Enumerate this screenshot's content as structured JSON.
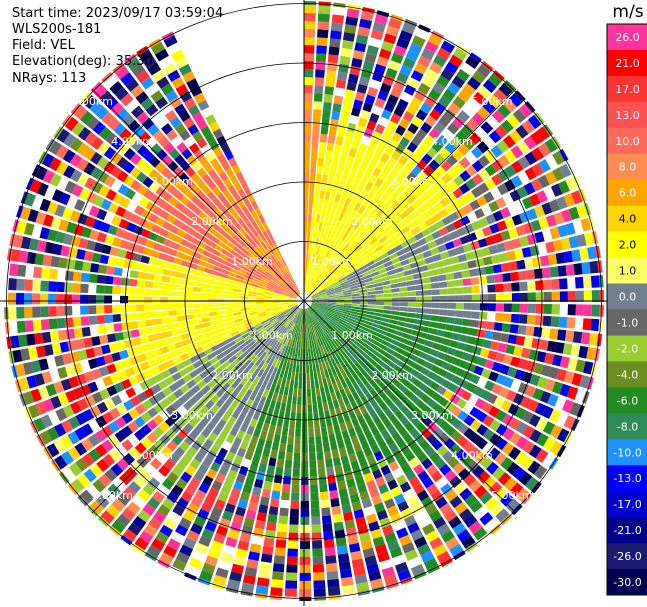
{
  "header": {
    "start_time": "Start time: 2023/09/17 03:59:04",
    "instrument": "WLS200s-181",
    "field": "Field: VEL",
    "elevation": "Elevation(deg): 35.30",
    "nrays": "NRays: 113"
  },
  "colorbar": {
    "unit": "m/s",
    "bins": [
      {
        "label": "26.0",
        "color": "#ff3399"
      },
      {
        "label": "21.0",
        "color": "#ff0000"
      },
      {
        "label": "17.0",
        "color": "#ff3333"
      },
      {
        "label": "13.0",
        "color": "#ff5050"
      },
      {
        "label": "10.0",
        "color": "#ff6a5a"
      },
      {
        "label": "8.0",
        "color": "#ff8c50"
      },
      {
        "label": "6.0",
        "color": "#ffa500"
      },
      {
        "label": "4.0",
        "color": "#ffd400"
      },
      {
        "label": "2.0",
        "color": "#ffff00"
      },
      {
        "label": "1.0",
        "color": "#ffff66"
      },
      {
        "label": "0.0",
        "color": "#708090"
      },
      {
        "label": "-1.0",
        "color": "#666666"
      },
      {
        "label": "-2.0",
        "color": "#9acd32"
      },
      {
        "label": "-4.0",
        "color": "#6b8e23"
      },
      {
        "label": "-6.0",
        "color": "#228b22"
      },
      {
        "label": "-8.0",
        "color": "#2e8b57"
      },
      {
        "label": "-10.0",
        "color": "#1e90ff"
      },
      {
        "label": "-13.0",
        "color": "#0000ff"
      },
      {
        "label": "-17.0",
        "color": "#0000cd"
      },
      {
        "label": "-21.0",
        "color": "#00008b"
      },
      {
        "label": "-26.0",
        "color": "#191970"
      },
      {
        "label": "-30.0",
        "color": "#000050"
      }
    ]
  },
  "range_ring_labels": [
    "1.00km",
    "2.00km",
    "3.00km",
    "4.00km",
    "5.00km"
  ],
  "chart_data": {
    "type": "heatmap",
    "ring_ranges_km": [
      1.0,
      2.0,
      3.0,
      4.0,
      5.0
    ],
    "missing_sector_deg": [
      -25,
      0
    ],
    "dominant_velocity_by_sector": [
      {
        "sector": "north-east near field",
        "velocity_ms": 2.0
      },
      {
        "sector": "east near field",
        "velocity_ms": -1.0
      },
      {
        "sector": "south-east near field",
        "velocity_ms": -6.0
      },
      {
        "sector": "south-west near field",
        "velocity_ms": -2.0
      },
      {
        "sector": "west near field",
        "velocity_ms": 1.0
      },
      {
        "sector": "north-west near field",
        "velocity_ms": 8.0
      }
    ]
  }
}
